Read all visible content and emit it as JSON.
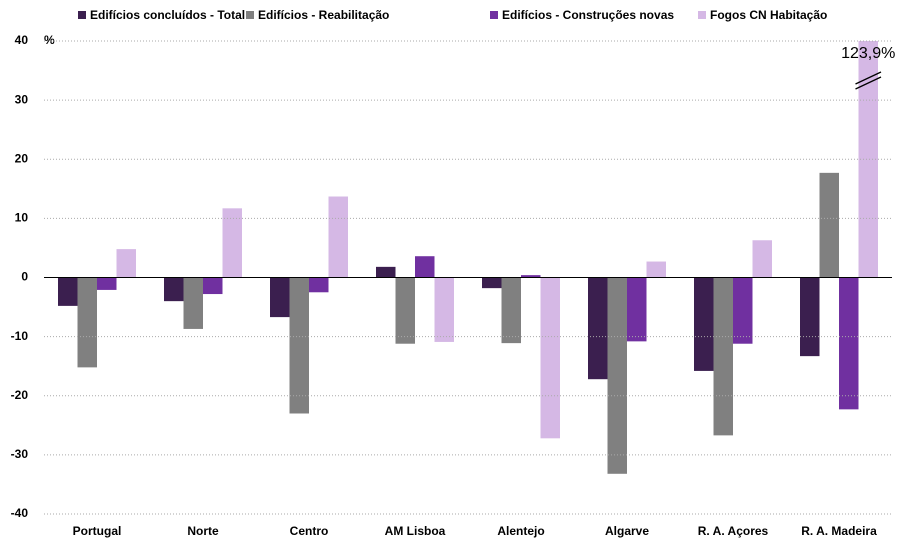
{
  "chart_data": {
    "type": "bar",
    "ylabel": "%",
    "categories": [
      "Portugal",
      "Norte",
      "Centro",
      "AM Lisboa",
      "Alentejo",
      "Algarve",
      "R. A. Açores",
      "R. A. Madeira"
    ],
    "series": [
      {
        "name": "Edifícios concluídos - Total",
        "color": "#3b1f4f",
        "values": [
          -4.8,
          -4.0,
          -6.7,
          1.8,
          -1.8,
          -17.2,
          -15.8,
          -13.3
        ]
      },
      {
        "name": "Edifícios - Reabilitação",
        "color": "#808080",
        "values": [
          -15.2,
          -8.7,
          -23.0,
          -11.2,
          -11.1,
          -33.2,
          -26.7,
          17.7
        ]
      },
      {
        "name": "Edifícios - Construções novas",
        "color": "#7030a0",
        "values": [
          -2.1,
          -2.8,
          -2.5,
          3.6,
          0.4,
          -10.8,
          -11.2,
          -22.3
        ]
      },
      {
        "name": "Fogos CN Habitação",
        "color": "#d5b8e5",
        "values": [
          4.8,
          11.7,
          13.7,
          -10.9,
          -27.2,
          2.7,
          6.3,
          123.9
        ],
        "value_labels": [
          null,
          null,
          null,
          null,
          null,
          null,
          null,
          "123,9%"
        ]
      }
    ],
    "ylim": [
      -40,
      40
    ],
    "yticks": [
      -40,
      -30,
      -20,
      -10,
      0,
      10,
      20,
      30,
      40
    ],
    "grid": true
  }
}
